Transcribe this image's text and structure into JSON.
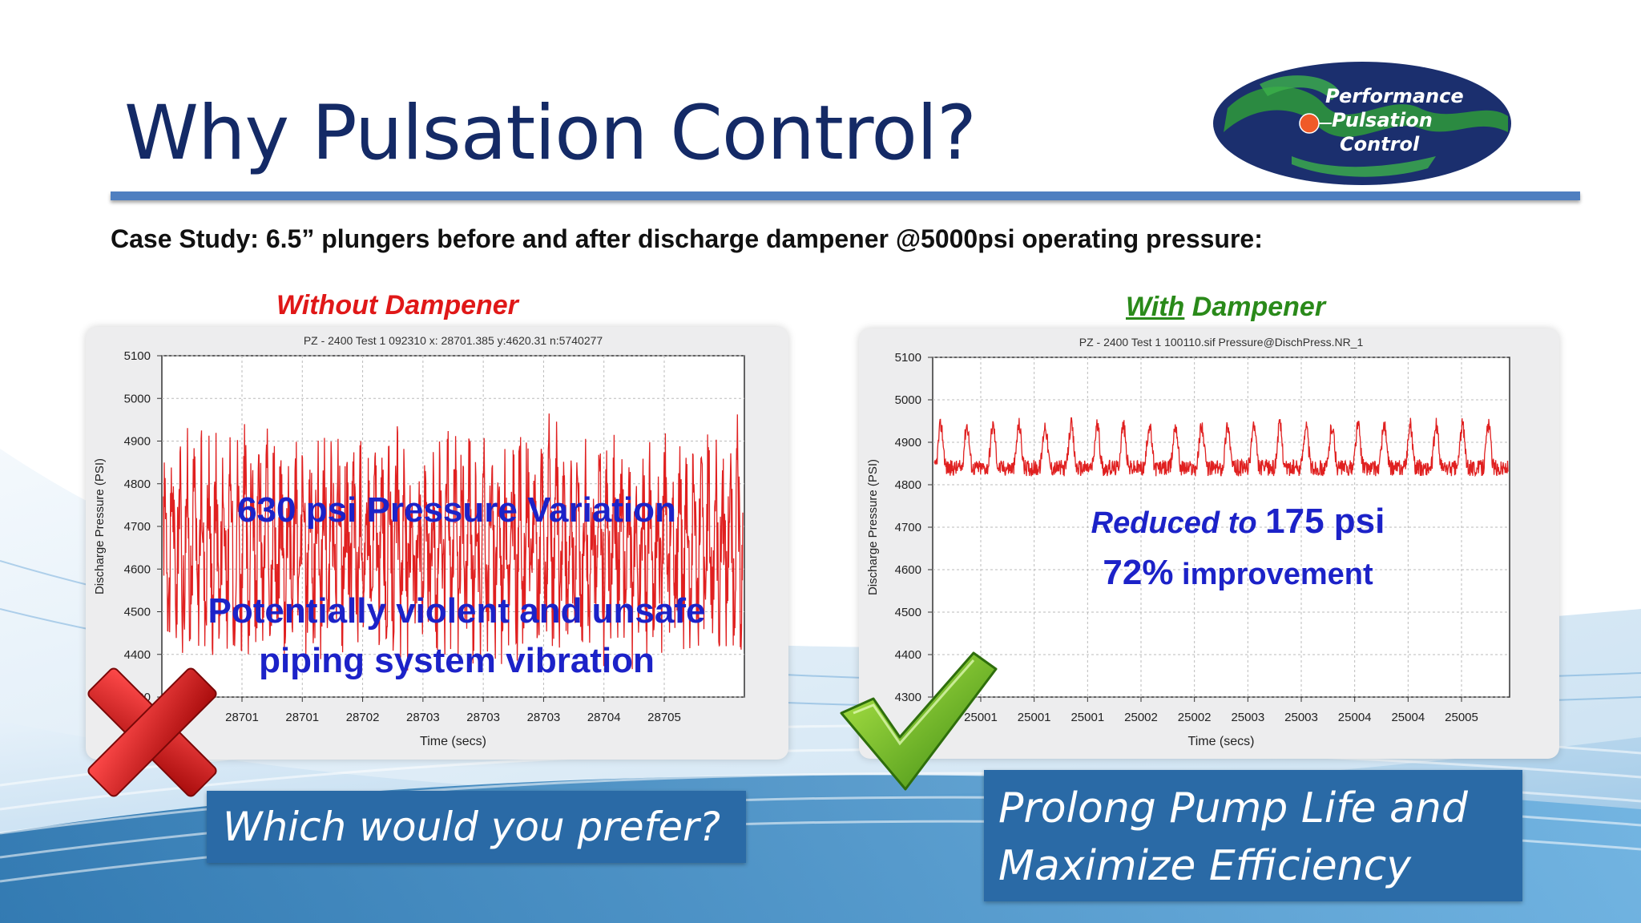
{
  "slide": {
    "title": "Why Pulsation Control?",
    "subtitle": "Case Study:  6.5” plungers before and after discharge dampener @5000psi operating pressure:",
    "logo": {
      "line1": "Performance",
      "line2": "Pulsation",
      "line3": "Control"
    },
    "label_without": "Without Dampener",
    "label_with_underlined": "With",
    "label_with_rest": " Dampener",
    "overlay_left_1": "630 psi Pressure Variation",
    "overlay_left_2a": "Potentially violent and unsafe",
    "overlay_left_2b": "piping system vibration",
    "overlay_right_reduced": "Reduced to ",
    "overlay_right_value": "175 psi",
    "overlay_right_pct": "72%",
    "overlay_right_improvement": " improvement",
    "box_left": "Which would you prefer?",
    "box_right_1": "Prolong Pump Life and",
    "box_right_2": "Maximize Efficiency",
    "colors": {
      "title": "#142a66",
      "accent": "#4f7fc0",
      "box": "#2a6aa6",
      "trace": "#e02020",
      "overlay": "#1c22c8"
    },
    "icons": {
      "left": "red-x-icon",
      "right": "green-check-icon"
    }
  },
  "chart_data": [
    {
      "type": "line",
      "header": "PZ - 2400 Test 1    092310    x: 28701.385    y:4620.31    n:5740277",
      "xlabel": "Time (secs)",
      "ylabel": "Discharge Pressure (PSI)",
      "ylim": [
        4300,
        5100
      ],
      "yticks": [
        "5100",
        "5000",
        "4900",
        "4800",
        "4700",
        "4600",
        "4500",
        "4400",
        "4300"
      ],
      "xticks": [
        "28701",
        "28701",
        "28702",
        "28703",
        "28703",
        "28703",
        "28704",
        "28705"
      ],
      "grid": true,
      "series": [
        {
          "color": "#e02020",
          "center": 4660,
          "peak_to_peak": 630,
          "cycles": 80
        }
      ]
    },
    {
      "type": "line",
      "header": "PZ - 2400 Test 1    100110.sif    Pressure@DischPress.NR_1",
      "xlabel": "Time (secs)",
      "ylabel": "Discharge Pressure (PSI)",
      "ylim": [
        4300,
        5100
      ],
      "yticks": [
        "5100",
        "5000",
        "4900",
        "4800",
        "4700",
        "4600",
        "4500",
        "4400",
        "4300"
      ],
      "xticks": [
        "25001",
        "25001",
        "25001",
        "25002",
        "25002",
        "25003",
        "25003",
        "25004",
        "25004",
        "25005"
      ],
      "grid": true,
      "series": [
        {
          "color": "#e02020",
          "center": 4870,
          "peak_to_peak": 175,
          "cycles": 22
        }
      ]
    }
  ]
}
